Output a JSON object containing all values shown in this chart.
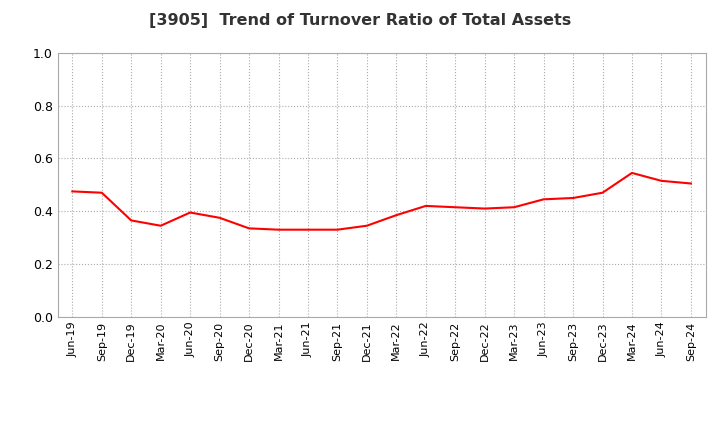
{
  "title": "[3905]  Trend of Turnover Ratio of Total Assets",
  "title_fontsize": 11.5,
  "title_color": "#333333",
  "line_color": "#FF0000",
  "line_width": 1.5,
  "background_color": "#FFFFFF",
  "ylim": [
    0.0,
    1.0
  ],
  "yticks": [
    0.0,
    0.2,
    0.4,
    0.6,
    0.8,
    1.0
  ],
  "x_labels": [
    "Jun-19",
    "Sep-19",
    "Dec-19",
    "Mar-20",
    "Jun-20",
    "Sep-20",
    "Dec-20",
    "Mar-21",
    "Jun-21",
    "Sep-21",
    "Dec-21",
    "Mar-22",
    "Jun-22",
    "Sep-22",
    "Dec-22",
    "Mar-23",
    "Jun-23",
    "Sep-23",
    "Dec-23",
    "Mar-24",
    "Jun-24",
    "Sep-24"
  ],
  "values": [
    0.475,
    0.47,
    0.365,
    0.345,
    0.395,
    0.375,
    0.335,
    0.33,
    0.33,
    0.33,
    0.345,
    0.385,
    0.42,
    0.415,
    0.41,
    0.415,
    0.445,
    0.45,
    0.47,
    0.545,
    0.515,
    0.505
  ],
  "grid_color": "#AAAAAA",
  "grid_linestyle": ":",
  "grid_linewidth": 0.8,
  "tick_fontsize": 8.0,
  "ytick_fontsize": 9.0
}
